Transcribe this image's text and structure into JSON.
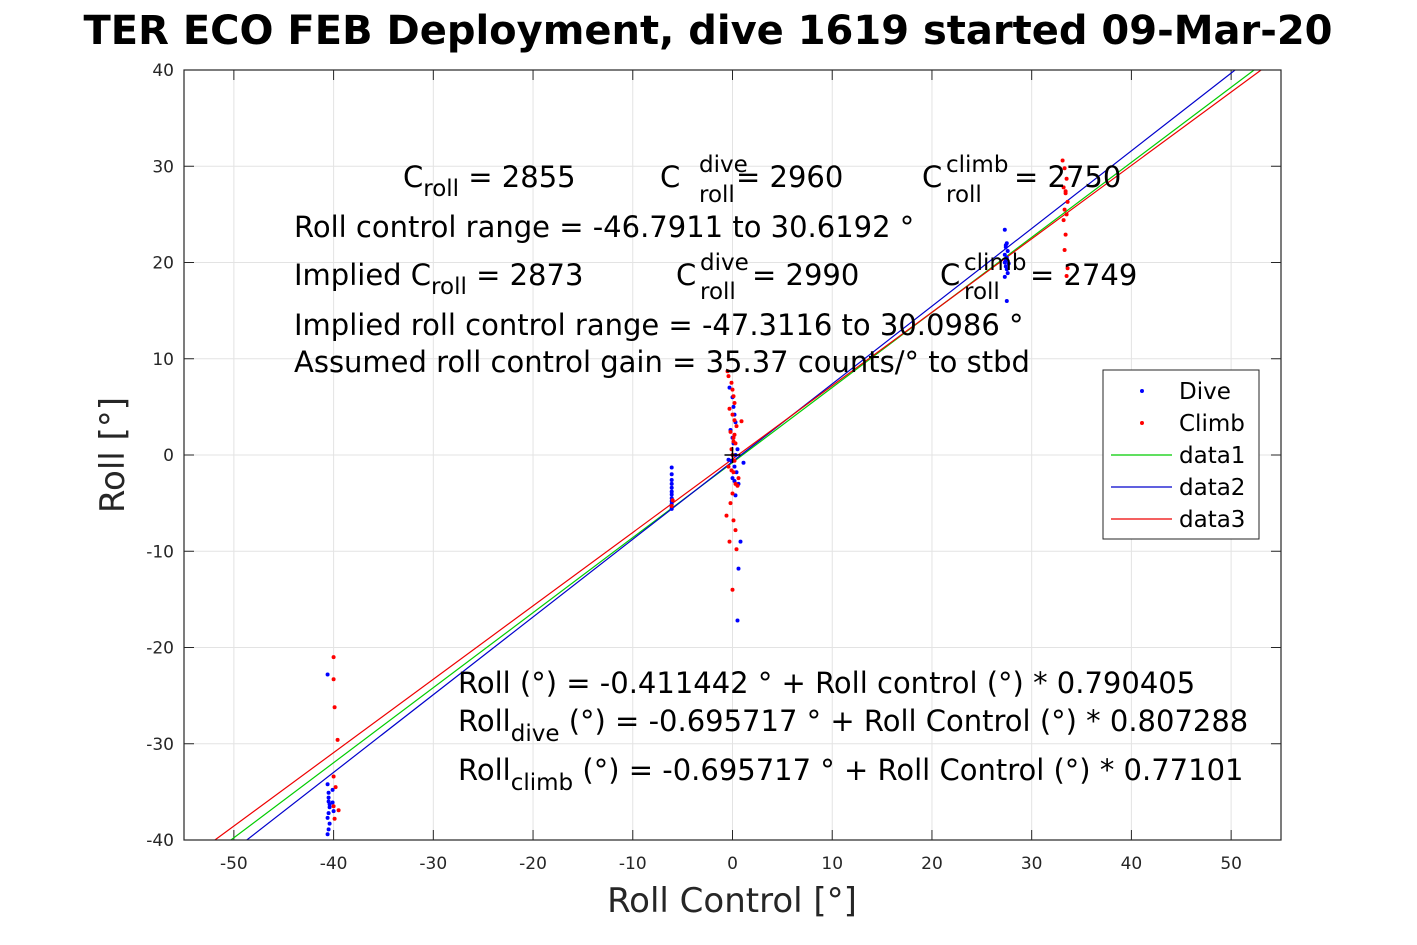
{
  "chart_data": {
    "type": "scatter",
    "title": "TER ECO FEB Deployment, dive 1619 started 09-Mar-20",
    "xlabel": "Roll Control [°]",
    "ylabel": "Roll [°]",
    "xlim": [
      -55,
      55
    ],
    "ylim": [
      -40,
      40
    ],
    "xticks": [
      -50,
      -40,
      -30,
      -20,
      -10,
      0,
      10,
      20,
      30,
      40,
      50
    ],
    "yticks": [
      -40,
      -30,
      -20,
      -10,
      0,
      10,
      20,
      30,
      40
    ],
    "grid": true,
    "legend_position": "right",
    "legend": [
      "Dive",
      "Climb",
      "data1",
      "data2",
      "data3"
    ],
    "colors": {
      "dive": "#0000ff",
      "climb": "#ff0000",
      "data1": "#00cc00",
      "data2": "#0000cc",
      "data3": "#ee0000"
    },
    "series": [
      {
        "name": "Dive",
        "kind": "points",
        "color": "#0000ff",
        "x": [
          -40.6,
          -40.6,
          -40.5,
          -40.5,
          -40.4,
          -40.5,
          -40.6,
          -40.4,
          -40.5,
          -40.6,
          -40.5,
          -40.4,
          -40.1,
          -40.1,
          -40.0,
          -6.1,
          -6.1,
          -6.1,
          -6.1,
          -6.1,
          -6.1,
          -6.1,
          -6.1,
          -6.1,
          -6.1,
          -6.1,
          -6.1,
          -0.3,
          0.0,
          0.1,
          0.2,
          0.3,
          -0.2,
          0.0,
          0.1,
          0.5,
          0.3,
          -0.1,
          0.2,
          0.4,
          0.0,
          0.6,
          0.3,
          0.8,
          0.6,
          -0.4,
          1.1,
          0.5,
          0.2,
          27.3,
          27.5,
          27.4,
          27.6,
          27.3,
          27.5,
          27.4,
          27.7,
          27.4,
          27.5,
          27.6,
          27.3,
          27.5,
          27.4,
          27.3
        ],
        "y": [
          -22.8,
          -34.2,
          -35.1,
          -36.0,
          -36.6,
          -37.2,
          -37.7,
          -38.3,
          -38.9,
          -39.4,
          -35.6,
          -36.3,
          -34.8,
          -36.1,
          -37.0,
          -1.3,
          -2.0,
          -2.6,
          -3.0,
          -3.4,
          -3.8,
          -4.1,
          -4.5,
          -4.8,
          -5.1,
          -5.4,
          -5.6,
          7.0,
          6.0,
          5.0,
          4.2,
          3.4,
          2.6,
          1.8,
          1.2,
          0.6,
          0.0,
          -0.6,
          -1.2,
          -1.8,
          -2.4,
          -3.0,
          -4.2,
          -9.0,
          -11.8,
          -0.5,
          -0.8,
          -17.2,
          -2.7,
          23.4,
          22.0,
          21.6,
          21.2,
          20.8,
          20.5,
          20.2,
          19.9,
          19.6,
          19.3,
          18.9,
          18.5,
          16.0,
          21.8,
          20.0
        ]
      },
      {
        "name": "Climb",
        "kind": "points",
        "color": "#ff0000",
        "x": [
          -40.0,
          -40.0,
          -39.9,
          -39.6,
          -40.0,
          -39.8,
          -40.0,
          -39.9,
          -39.5,
          -6.0,
          -6.1,
          -0.5,
          -0.4,
          -0.1,
          0.0,
          0.1,
          0.2,
          -0.3,
          0.0,
          0.2,
          0.4,
          -0.2,
          0.1,
          0.3,
          -0.1,
          0.0,
          0.2,
          -0.4,
          0.1,
          0.6,
          0.3,
          0.0,
          -0.2,
          0.1,
          0.3,
          -0.3,
          0.4,
          0.0,
          0.5,
          0.1,
          -0.6,
          -0.1,
          0.2,
          0.9,
          33.1,
          33.3,
          33.5,
          33.2,
          33.4,
          33.6,
          33.3,
          33.5,
          33.2,
          33.4,
          33.3,
          33.6,
          33.5,
          33.4
        ],
        "y": [
          -21.0,
          -23.3,
          -26.2,
          -29.6,
          -33.4,
          -34.5,
          -36.5,
          -37.8,
          -36.9,
          -4.7,
          -5.3,
          8.7,
          8.2,
          7.5,
          6.8,
          6.1,
          5.4,
          4.8,
          4.2,
          3.6,
          3.0,
          2.4,
          1.8,
          1.2,
          0.6,
          0.0,
          -0.6,
          -1.2,
          -1.8,
          -2.4,
          -3.0,
          -4.0,
          -5.0,
          -6.8,
          -7.8,
          -9.0,
          -9.8,
          -14.0,
          -3.2,
          1.4,
          -6.3,
          -1.6,
          2.1,
          3.5,
          30.6,
          29.8,
          28.7,
          27.8,
          27.2,
          26.3,
          25.5,
          25.0,
          24.4,
          22.9,
          21.3,
          19.4,
          18.6,
          27.4
        ]
      },
      {
        "name": "data1",
        "kind": "line",
        "color": "#00cc00",
        "x": [
          -50.3,
          52.3
        ],
        "y": [
          -40,
          40
        ]
      },
      {
        "name": "data2",
        "kind": "line",
        "color": "#0000cc",
        "x": [
          -48.7,
          50.4
        ],
        "y": [
          -40,
          40
        ]
      },
      {
        "name": "data3",
        "kind": "line",
        "color": "#ee0000",
        "x": [
          -51.9,
          53.0
        ],
        "y": [
          -40,
          40
        ]
      }
    ],
    "annotations": {
      "c_roll": {
        "main": "C",
        "sub": "roll",
        "value": " = 2855"
      },
      "c_roll_dive": {
        "main": "C",
        "sup": "dive",
        "sub": "roll",
        "value": " = 2960"
      },
      "c_roll_climb": {
        "main": "C",
        "sup": "climb",
        "sub": "roll",
        "value": " = 2750"
      },
      "range": "Roll control range = -46.7911 to 30.6192 °",
      "implied_c_roll": {
        "main": "Implied C",
        "sub": "roll",
        "value": " = 2873"
      },
      "implied_c_roll_dive": {
        "main": "C",
        "sup": "dive",
        "sub": "roll",
        "value": " = 2990"
      },
      "implied_c_roll_climb": {
        "main": "C",
        "sup": "climb",
        "sub": "roll",
        "value": " = 2749"
      },
      "implied_range": "Implied roll control range = -47.3116 to 30.0986 °",
      "gain": "Assumed roll control gain = 35.37 counts/° to stbd",
      "fit": "Roll (°) = -0.411442 ° + Roll control (°) * 0.790405",
      "fit_dive": {
        "main": "Roll",
        "sub": "dive",
        "rest": " (°) = -0.695717 ° + Roll Control (°) * 0.807288"
      },
      "fit_climb": {
        "main": "Roll",
        "sub": "climb",
        "rest": " (°) = -0.695717 ° + Roll Control (°) * 0.77101"
      }
    }
  }
}
